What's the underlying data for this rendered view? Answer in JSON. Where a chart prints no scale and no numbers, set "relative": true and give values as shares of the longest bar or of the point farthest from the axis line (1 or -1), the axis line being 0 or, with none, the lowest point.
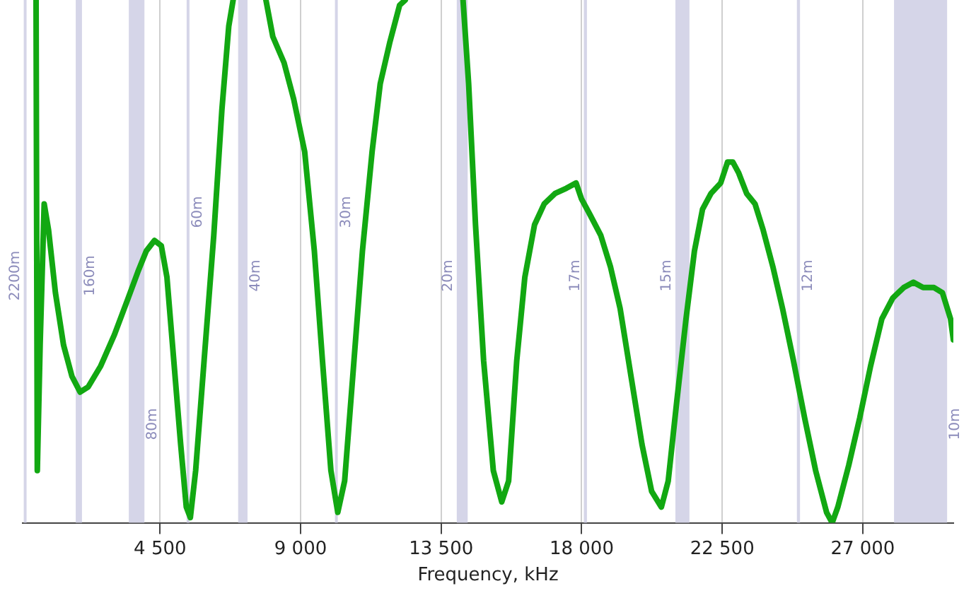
{
  "chart_data": {
    "type": "line",
    "xlabel": "Frequency, kHz",
    "relative": true,
    "grid": "x",
    "legend": false,
    "marker": "none",
    "line_style": "solid",
    "xlim": [
      100,
      29900
    ],
    "xticks": [
      {
        "value": 4500,
        "label": "4 500"
      },
      {
        "value": 9000,
        "label": "9 000"
      },
      {
        "value": 13500,
        "label": "13 500"
      },
      {
        "value": 18000,
        "label": "18 000"
      },
      {
        "value": 22500,
        "label": "22 500"
      },
      {
        "value": 27000,
        "label": "27 000"
      }
    ],
    "bands": [
      {
        "axis": "x",
        "from": 135.7,
        "to": 137.8,
        "label": "2200m",
        "color": "#d5d5e8"
      },
      {
        "axis": "x",
        "from": 1800,
        "to": 2000,
        "label": "160m",
        "color": "#d5d5e8"
      },
      {
        "axis": "x",
        "from": 3500,
        "to": 4000,
        "label": "80m",
        "color": "#d5d5e8"
      },
      {
        "axis": "x",
        "from": 5351,
        "to": 5366,
        "label": "60m",
        "color": "#d5d5e8"
      },
      {
        "axis": "x",
        "from": 7000,
        "to": 7300,
        "label": "40m",
        "color": "#d5d5e8"
      },
      {
        "axis": "x",
        "from": 10100,
        "to": 10150,
        "label": "30m",
        "color": "#d5d5e8"
      },
      {
        "axis": "x",
        "from": 14000,
        "to": 14350,
        "label": "20m",
        "color": "#d5d5e8"
      },
      {
        "axis": "x",
        "from": 18068,
        "to": 18168,
        "label": "17m",
        "color": "#d5d5e8"
      },
      {
        "axis": "x",
        "from": 21000,
        "to": 21450,
        "label": "15m",
        "color": "#d5d5e8"
      },
      {
        "axis": "x",
        "from": 24890,
        "to": 24990,
        "label": "12m",
        "color": "#d5d5e8"
      },
      {
        "axis": "x",
        "from": 28000,
        "to": 29700,
        "label": "10m",
        "color": "#d5d5e8"
      }
    ],
    "series": [
      {
        "color": "#12a812",
        "x": [
          530,
          570,
          660,
          790,
          930,
          1150,
          1410,
          1680,
          1940,
          2200,
          2600,
          3040,
          3480,
          3790,
          4060,
          4320,
          4540,
          4720,
          4940,
          5160,
          5340,
          5470,
          5640,
          5910,
          6220,
          6480,
          6700,
          6840,
          7500,
          7890,
          8110,
          8470,
          8780,
          9130,
          9440,
          9700,
          9970,
          10190,
          10410,
          10670,
          10980,
          11290,
          11550,
          11860,
          12170,
          12350,
          13000,
          14200,
          14380,
          14600,
          14860,
          15170,
          15440,
          15660,
          15920,
          16180,
          16490,
          16800,
          17150,
          17510,
          17820,
          17990,
          18260,
          18610,
          18920,
          19230,
          19580,
          19930,
          20240,
          20550,
          20770,
          21040,
          21340,
          21610,
          21870,
          22140,
          22450,
          22670,
          22840,
          23020,
          23280,
          23550,
          23810,
          24120,
          24430,
          24780,
          25140,
          25490,
          25840,
          26020,
          26200,
          26550,
          26900,
          27250,
          27610,
          27960,
          28310,
          28620,
          28930,
          29280,
          29550,
          29810,
          29900
        ],
        "values": [
          1,
          0.1,
          0.34,
          0.61,
          0.56,
          0.44,
          0.34,
          0.28,
          0.25,
          0.26,
          0.3,
          0.36,
          0.43,
          0.48,
          0.52,
          0.54,
          0.53,
          0.47,
          0.31,
          0.15,
          0.03,
          0.01,
          0.1,
          0.31,
          0.55,
          0.79,
          0.95,
          1,
          null,
          1,
          0.93,
          0.88,
          0.81,
          0.71,
          0.52,
          0.31,
          0.1,
          0.02,
          0.08,
          0.28,
          0.52,
          0.71,
          0.84,
          0.92,
          0.99,
          1,
          null,
          1,
          0.84,
          0.57,
          0.31,
          0.1,
          0.04,
          0.08,
          0.31,
          0.47,
          0.57,
          0.61,
          0.63,
          0.64,
          0.65,
          0.62,
          0.59,
          0.55,
          0.49,
          0.41,
          0.28,
          0.15,
          0.06,
          0.03,
          0.08,
          0.23,
          0.39,
          0.52,
          0.6,
          0.63,
          0.65,
          0.69,
          0.69,
          0.67,
          0.63,
          0.61,
          0.56,
          0.49,
          0.41,
          0.31,
          0.2,
          0.1,
          0.02,
          0,
          0.03,
          0.11,
          0.2,
          0.3,
          0.39,
          0.43,
          0.45,
          0.46,
          0.45,
          0.45,
          0.44,
          0.39,
          0.35
        ]
      }
    ]
  }
}
